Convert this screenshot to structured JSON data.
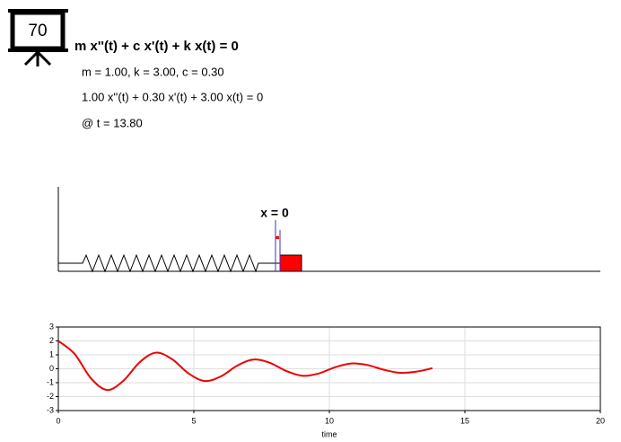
{
  "icon": {
    "label": "70"
  },
  "header": {
    "equation": "m x''(t) + c x'(t) + k x(t) = 0",
    "params": "m = 1.00, k = 3.00, c = 0.30",
    "instance": "1.00 x''(t) + 0.30 x'(t) + 3.00 x(t) = 0",
    "time": "@ t = 13.80"
  },
  "scene": {
    "origin_label": "x = 0"
  },
  "chart_data": {
    "type": "line",
    "xlabel": "time",
    "x": [
      0,
      0.6,
      1.2,
      1.8,
      2.4,
      3.0,
      3.6,
      4.2,
      4.8,
      5.4,
      6.0,
      6.6,
      7.2,
      7.8,
      8.4,
      9.0,
      9.6,
      10.2,
      10.8,
      11.4,
      12.0,
      12.6,
      13.2,
      13.8
    ],
    "series": [
      {
        "color": "#ee0000",
        "values": [
          2.0,
          1.07,
          -0.672,
          -1.521,
          -0.86,
          0.471,
          1.157,
          0.684,
          -0.327,
          -0.877,
          -0.545,
          0.224,
          0.664,
          0.432,
          -0.152,
          -0.502,
          -0.341,
          0.101,
          0.379,
          0.27,
          -0.066,
          -0.287,
          -0.212,
          0.041
        ]
      }
    ],
    "xlim": [
      0,
      20
    ],
    "xticks": [
      0,
      5,
      10,
      15,
      20
    ],
    "ylim": [
      -3,
      3
    ],
    "yticks": [
      -3,
      -2,
      -1,
      0,
      1,
      2,
      3
    ],
    "grid": true
  }
}
